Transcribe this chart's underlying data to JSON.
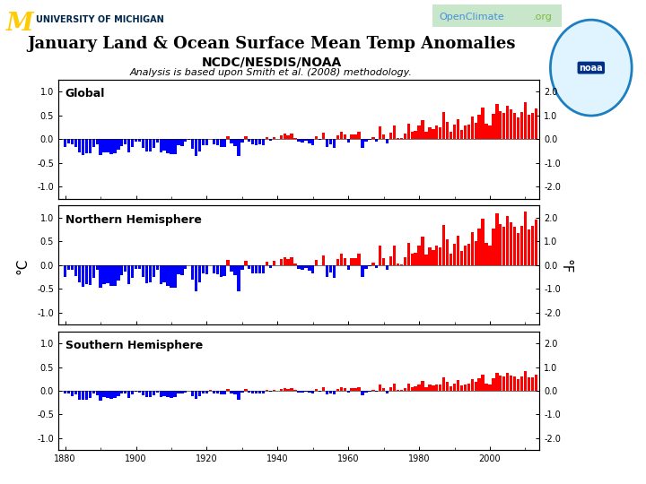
{
  "title": "January Land & Ocean Surface Mean Temp Anomalies",
  "subtitle": "NCDC/NESDIS/NOAA",
  "subtitle2": "Analysis is based upon Smith et al. (2008) methodology.",
  "panels": [
    "Global",
    "Northern Hemisphere",
    "Southern Hemisphere"
  ],
  "years": [
    1880,
    1881,
    1882,
    1883,
    1884,
    1885,
    1886,
    1887,
    1888,
    1889,
    1890,
    1891,
    1892,
    1893,
    1894,
    1895,
    1896,
    1897,
    1898,
    1899,
    1900,
    1901,
    1902,
    1903,
    1904,
    1905,
    1906,
    1907,
    1908,
    1909,
    1910,
    1911,
    1912,
    1913,
    1914,
    1915,
    1916,
    1917,
    1918,
    1919,
    1920,
    1921,
    1922,
    1923,
    1924,
    1925,
    1926,
    1927,
    1928,
    1929,
    1930,
    1931,
    1932,
    1933,
    1934,
    1935,
    1936,
    1937,
    1938,
    1939,
    1940,
    1941,
    1942,
    1943,
    1944,
    1945,
    1946,
    1947,
    1948,
    1949,
    1950,
    1951,
    1952,
    1953,
    1954,
    1955,
    1956,
    1957,
    1958,
    1959,
    1960,
    1961,
    1962,
    1963,
    1964,
    1965,
    1966,
    1967,
    1968,
    1969,
    1970,
    1971,
    1972,
    1973,
    1974,
    1975,
    1976,
    1977,
    1978,
    1979,
    1980,
    1981,
    1982,
    1983,
    1984,
    1985,
    1986,
    1987,
    1988,
    1989,
    1990,
    1991,
    1992,
    1993,
    1994,
    1995,
    1996,
    1997,
    1998,
    1999,
    2000,
    2001,
    2002,
    2003,
    2004,
    2005,
    2006,
    2007,
    2008,
    2009,
    2010,
    2011,
    2012,
    2013
  ],
  "global": [
    -0.17,
    -0.08,
    -0.11,
    -0.16,
    -0.28,
    -0.33,
    -0.3,
    -0.29,
    -0.17,
    -0.1,
    -0.34,
    -0.27,
    -0.28,
    -0.31,
    -0.3,
    -0.22,
    -0.14,
    -0.1,
    -0.28,
    -0.17,
    -0.05,
    -0.06,
    -0.18,
    -0.26,
    -0.26,
    -0.18,
    -0.07,
    -0.28,
    -0.24,
    -0.29,
    -0.32,
    -0.31,
    -0.13,
    -0.14,
    -0.06,
    -0.01,
    -0.21,
    -0.36,
    -0.25,
    -0.12,
    -0.13,
    -0.0,
    -0.11,
    -0.13,
    -0.17,
    -0.16,
    0.07,
    -0.09,
    -0.14,
    -0.36,
    -0.07,
    0.06,
    -0.06,
    -0.11,
    -0.12,
    -0.11,
    -0.12,
    0.04,
    -0.04,
    0.05,
    0.0,
    0.09,
    0.12,
    0.08,
    0.11,
    0.03,
    -0.06,
    -0.07,
    -0.04,
    -0.08,
    -0.12,
    0.07,
    -0.01,
    0.14,
    -0.17,
    -0.11,
    -0.18,
    0.09,
    0.16,
    0.1,
    -0.07,
    0.1,
    0.1,
    0.16,
    -0.18,
    -0.06,
    -0.02,
    0.04,
    -0.05,
    0.27,
    0.1,
    -0.08,
    0.13,
    0.28,
    0.02,
    0.02,
    0.12,
    0.32,
    0.16,
    0.17,
    0.28,
    0.41,
    0.15,
    0.26,
    0.22,
    0.28,
    0.26,
    0.57,
    0.37,
    0.16,
    0.3,
    0.42,
    0.2,
    0.28,
    0.31,
    0.48,
    0.35,
    0.52,
    0.66,
    0.32,
    0.28,
    0.53,
    0.74,
    0.6,
    0.56,
    0.71,
    0.62,
    0.56,
    0.46,
    0.57,
    0.78,
    0.52,
    0.56,
    0.65
  ],
  "northern": [
    -0.26,
    -0.1,
    -0.1,
    -0.23,
    -0.37,
    -0.46,
    -0.4,
    -0.42,
    -0.27,
    -0.1,
    -0.48,
    -0.4,
    -0.39,
    -0.44,
    -0.44,
    -0.32,
    -0.22,
    -0.14,
    -0.41,
    -0.27,
    -0.08,
    -0.09,
    -0.26,
    -0.38,
    -0.37,
    -0.26,
    -0.1,
    -0.41,
    -0.36,
    -0.44,
    -0.48,
    -0.47,
    -0.2,
    -0.22,
    -0.09,
    -0.01,
    -0.31,
    -0.55,
    -0.37,
    -0.18,
    -0.2,
    -0.0,
    -0.17,
    -0.2,
    -0.26,
    -0.24,
    0.1,
    -0.13,
    -0.21,
    -0.55,
    -0.11,
    0.09,
    -0.09,
    -0.17,
    -0.18,
    -0.17,
    -0.18,
    0.06,
    -0.06,
    0.08,
    0.0,
    0.13,
    0.17,
    0.12,
    0.16,
    0.04,
    -0.09,
    -0.1,
    -0.06,
    -0.12,
    -0.18,
    0.1,
    -0.01,
    0.2,
    -0.25,
    -0.16,
    -0.27,
    0.13,
    0.23,
    0.15,
    -0.1,
    0.14,
    0.15,
    0.23,
    -0.26,
    -0.09,
    -0.03,
    0.05,
    -0.07,
    0.4,
    0.14,
    -0.11,
    0.19,
    0.41,
    0.03,
    0.02,
    0.17,
    0.47,
    0.23,
    0.25,
    0.41,
    0.6,
    0.22,
    0.38,
    0.32,
    0.41,
    0.38,
    0.84,
    0.54,
    0.23,
    0.44,
    0.61,
    0.29,
    0.41,
    0.45,
    0.7,
    0.51,
    0.76,
    0.97,
    0.47,
    0.41,
    0.77,
    1.08,
    0.87,
    0.81,
    1.03,
    0.9,
    0.81,
    0.67,
    0.83,
    1.13,
    0.75,
    0.82,
    0.95
  ],
  "southern": [
    -0.06,
    -0.06,
    -0.11,
    -0.08,
    -0.18,
    -0.19,
    -0.19,
    -0.15,
    -0.06,
    -0.09,
    -0.2,
    -0.13,
    -0.16,
    -0.17,
    -0.16,
    -0.11,
    -0.05,
    -0.06,
    -0.15,
    -0.07,
    -0.01,
    -0.03,
    -0.1,
    -0.13,
    -0.13,
    -0.09,
    -0.04,
    -0.14,
    -0.12,
    -0.14,
    -0.15,
    -0.14,
    -0.06,
    -0.06,
    -0.03,
    0.0,
    -0.11,
    -0.17,
    -0.12,
    -0.06,
    -0.06,
    0.01,
    -0.05,
    -0.06,
    -0.08,
    -0.08,
    0.03,
    -0.05,
    -0.07,
    -0.18,
    -0.03,
    0.03,
    -0.03,
    -0.05,
    -0.05,
    -0.05,
    -0.05,
    0.02,
    -0.02,
    0.01,
    0.0,
    0.04,
    0.06,
    0.04,
    0.06,
    0.02,
    -0.03,
    -0.03,
    -0.02,
    -0.03,
    -0.05,
    0.03,
    -0.01,
    0.07,
    -0.08,
    -0.05,
    -0.08,
    0.04,
    0.08,
    0.05,
    -0.03,
    0.05,
    0.05,
    0.08,
    -0.09,
    -0.03,
    -0.01,
    0.02,
    -0.02,
    0.13,
    0.06,
    -0.05,
    0.07,
    0.15,
    0.01,
    0.02,
    0.06,
    0.16,
    0.08,
    0.09,
    0.14,
    0.21,
    0.08,
    0.13,
    0.11,
    0.14,
    0.13,
    0.28,
    0.19,
    0.09,
    0.15,
    0.22,
    0.11,
    0.14,
    0.16,
    0.25,
    0.18,
    0.27,
    0.34,
    0.16,
    0.14,
    0.27,
    0.38,
    0.32,
    0.3,
    0.38,
    0.33,
    0.3,
    0.24,
    0.3,
    0.42,
    0.28,
    0.29,
    0.34
  ],
  "ylim_left": [
    -1.25,
    1.25
  ],
  "ylim_right": [
    -2.5,
    2.5
  ],
  "yticks_left": [
    -1.0,
    -0.5,
    0.0,
    0.5,
    1.0
  ],
  "yticks_right": [
    -2.0,
    -1.0,
    0.0,
    1.0,
    2.0
  ],
  "xticks": [
    1880,
    1900,
    1920,
    1940,
    1960,
    1980,
    2000
  ],
  "ylabel_left": "°C",
  "ylabel_right": "°F",
  "color_positive": "#FF0000",
  "color_negative": "#0000FF",
  "bg_color": "#FFFFFF",
  "title_fontsize": 13,
  "subtitle_fontsize": 10,
  "subtitle2_fontsize": 8,
  "label_fontsize": 9,
  "tick_fontsize": 7,
  "um_color": "#FFCB05",
  "um_text_color": "#00274C",
  "open_color": "#4A90D9",
  "climate_color": "#7DB843",
  "noaa_circle_color": "#1E7FC0"
}
